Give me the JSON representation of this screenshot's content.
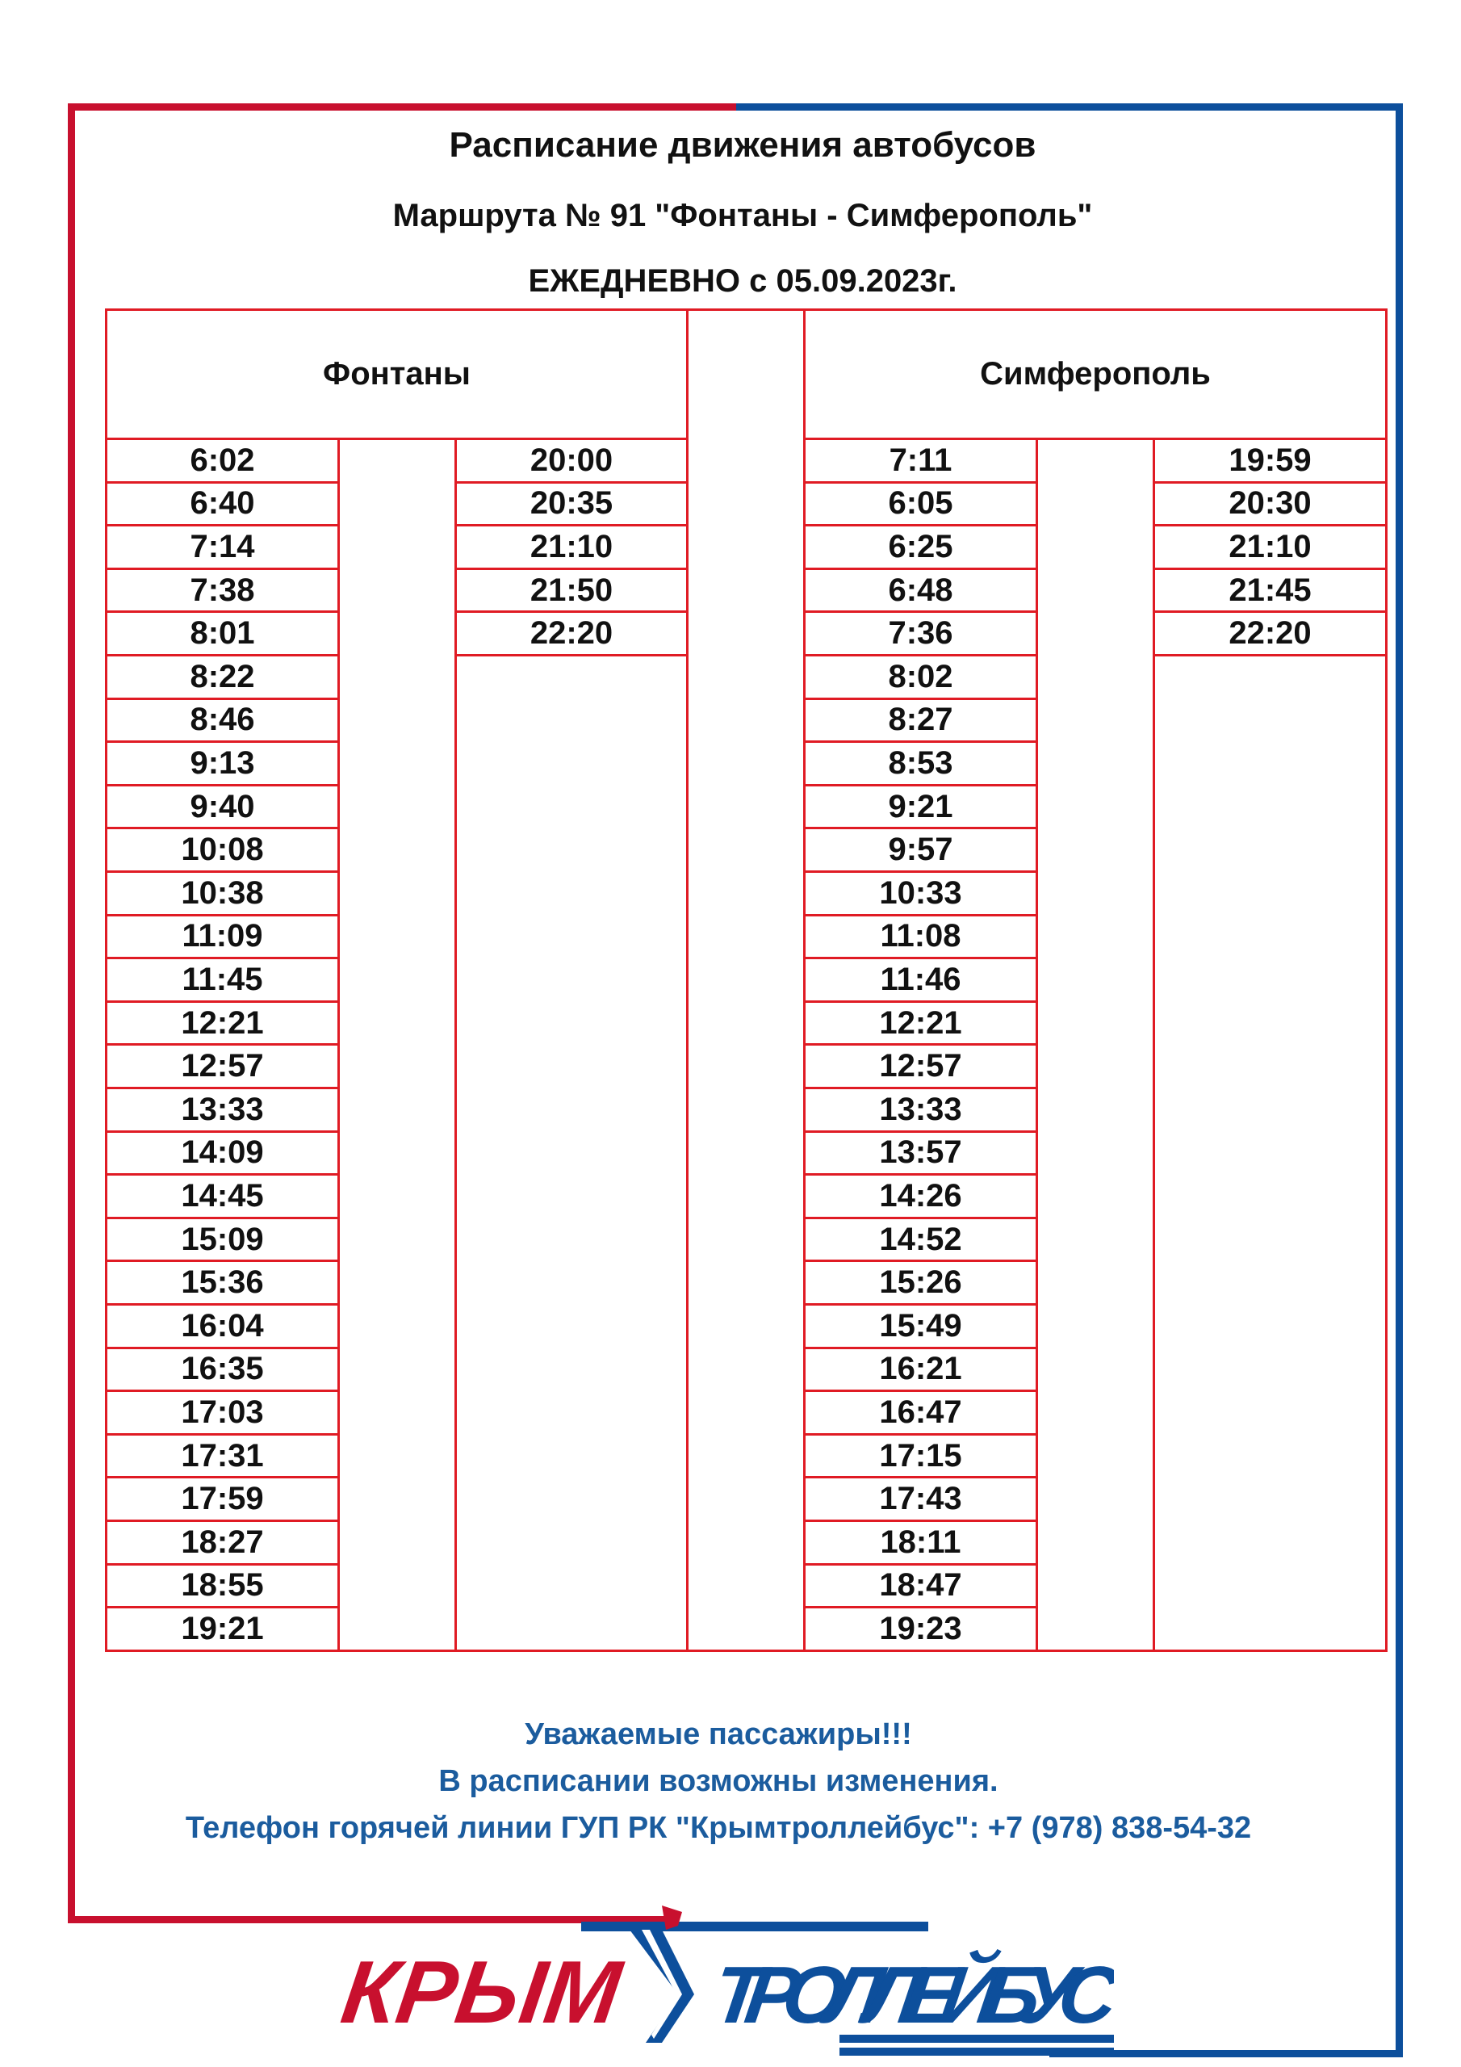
{
  "header": {
    "title": "Расписание движения автобусов",
    "route": "Маршрута  № 91 \"Фонтаны - Симферополь\"",
    "validity": "ЕЖЕДНЕВНО с 05.09.2023г."
  },
  "table": {
    "left": {
      "heading": "Фонтаны",
      "col1": [
        "6:02",
        "6:40",
        "7:14",
        "7:38",
        "8:01",
        "8:22",
        "8:46",
        "9:13",
        "9:40",
        "10:08",
        "10:38",
        "11:09",
        "11:45",
        "12:21",
        "12:57",
        "13:33",
        "14:09",
        "14:45",
        "15:09",
        "15:36",
        "16:04",
        "16:35",
        "17:03",
        "17:31",
        "17:59",
        "18:27",
        "18:55",
        "19:21"
      ],
      "col2": [
        "20:00",
        "20:35",
        "21:10",
        "21:50",
        "22:20"
      ]
    },
    "right": {
      "heading": "Симферополь",
      "col1": [
        "7:11",
        "6:05",
        "6:25",
        "6:48",
        "7:36",
        "8:02",
        "8:27",
        "8:53",
        "9:21",
        "9:57",
        "10:33",
        "11:08",
        "11:46",
        "12:21",
        "12:57",
        "13:33",
        "13:57",
        "14:26",
        "14:52",
        "15:26",
        "15:49",
        "16:21",
        "16:47",
        "17:15",
        "17:43",
        "18:11",
        "18:47",
        "19:23"
      ],
      "col2": [
        "19:59",
        "20:30",
        "21:10",
        "21:45",
        "22:20"
      ]
    }
  },
  "footer": {
    "line1": "Уважаемые пассажиры!!!",
    "line2": "В расписании возможны изменения.",
    "line3": "Телефон горячей линии ГУП РК \"Крымтроллейбус\": +7 (978) 838-54-32"
  },
  "logo": {
    "text_red": "КРЫМ",
    "text_blue": "ТРОЛЛЕЙБУС"
  },
  "colors": {
    "red": "#c8102e",
    "blue": "#0d4f9c",
    "grid": "#e01b24",
    "note": "#1b5c9e"
  }
}
